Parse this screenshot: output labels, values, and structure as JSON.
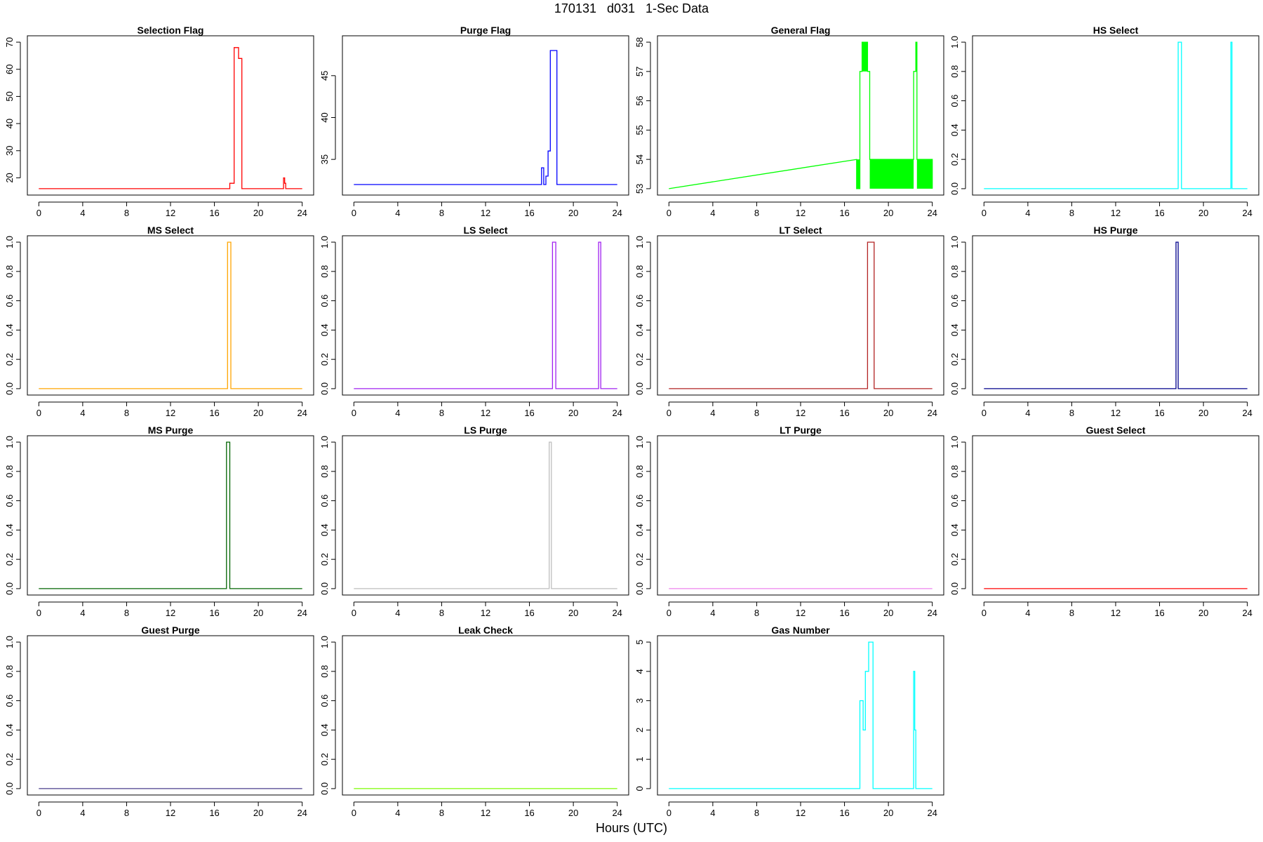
{
  "figure": {
    "title": "170131   d031   1-Sec Data",
    "xlabel": "Hours (UTC)"
  },
  "chart_data": [
    {
      "type": "line",
      "title": "Selection Flag",
      "color": "#ff0000",
      "xlim": [
        0,
        24
      ],
      "ylim": [
        16,
        70
      ],
      "xticks": [
        0,
        4,
        8,
        12,
        16,
        20,
        24
      ],
      "yticks": [
        20,
        30,
        40,
        50,
        60,
        70
      ],
      "x": [
        0,
        17.4,
        17.4,
        17.8,
        17.8,
        18.2,
        18.2,
        18.5,
        18.5,
        22.3,
        22.3,
        22.4,
        22.4,
        22.5,
        22.5,
        24
      ],
      "y": [
        16,
        16,
        18,
        18,
        68,
        68,
        64,
        64,
        16,
        16,
        20,
        20,
        18,
        18,
        16,
        16
      ]
    },
    {
      "type": "line",
      "title": "Purge Flag",
      "color": "#0000ff",
      "xlim": [
        0,
        24
      ],
      "ylim": [
        31.5,
        49
      ],
      "xticks": [
        0,
        4,
        8,
        12,
        16,
        20,
        24
      ],
      "yticks": [
        35,
        40,
        45
      ],
      "x": [
        0,
        17.1,
        17.1,
        17.3,
        17.3,
        17.5,
        17.5,
        17.7,
        17.7,
        17.9,
        17.9,
        18.5,
        18.5,
        24
      ],
      "y": [
        32,
        32,
        34,
        34,
        32,
        32,
        33,
        33,
        36,
        36,
        48,
        48,
        32,
        32
      ]
    },
    {
      "type": "line",
      "title": "General Flag",
      "color": "#00ff00",
      "xlim": [
        0,
        24
      ],
      "ylim": [
        53,
        58
      ],
      "xticks": [
        0,
        4,
        8,
        12,
        16,
        20,
        24
      ],
      "yticks": [
        53,
        54,
        55,
        56,
        57,
        58
      ],
      "x": [
        0,
        17.1,
        17.1,
        17.4,
        17.4,
        17.6,
        17.6,
        18.1,
        18.1,
        18.3,
        18.3,
        22.3,
        22.3,
        22.5,
        22.5,
        22.6,
        22.6,
        24,
        24
      ],
      "y": [
        53,
        54,
        53,
        53,
        57,
        57,
        58,
        58,
        57,
        57,
        54,
        54,
        57,
        57,
        58,
        58,
        54,
        54,
        53
      ],
      "filled_blocks": [
        {
          "x": [
            17.1,
            17.4
          ],
          "y": [
            53,
            54
          ]
        },
        {
          "x": [
            17.6,
            18.1
          ],
          "y": [
            57,
            58
          ]
        },
        {
          "x": [
            18.3,
            22.3
          ],
          "y": [
            53,
            54
          ]
        },
        {
          "x": [
            22.5,
            22.6
          ],
          "y": [
            57,
            58
          ]
        },
        {
          "x": [
            22.6,
            24
          ],
          "y": [
            53,
            54
          ]
        }
      ]
    },
    {
      "type": "line",
      "title": "HS Select",
      "color": "#00ffff",
      "xlim": [
        0,
        24
      ],
      "ylim": [
        0,
        1
      ],
      "xticks": [
        0,
        4,
        8,
        12,
        16,
        20,
        24
      ],
      "yticks": [
        0.0,
        0.2,
        0.4,
        0.6,
        0.8,
        1.0
      ],
      "x": [
        0,
        17.7,
        17.7,
        18.0,
        18.0,
        22.5,
        22.5,
        22.6,
        22.6,
        24
      ],
      "y": [
        0,
        0,
        1,
        1,
        0,
        0,
        1,
        1,
        0,
        0
      ]
    },
    {
      "type": "line",
      "title": "MS Select",
      "color": "#ffa500",
      "xlim": [
        0,
        24
      ],
      "ylim": [
        0,
        1
      ],
      "xticks": [
        0,
        4,
        8,
        12,
        16,
        20,
        24
      ],
      "yticks": [
        0.0,
        0.2,
        0.4,
        0.6,
        0.8,
        1.0
      ],
      "x": [
        0,
        17.2,
        17.2,
        17.5,
        17.5,
        24
      ],
      "y": [
        0,
        0,
        1,
        1,
        0,
        0
      ]
    },
    {
      "type": "line",
      "title": "LS Select",
      "color": "#a020f0",
      "xlim": [
        0,
        24
      ],
      "ylim": [
        0,
        1
      ],
      "xticks": [
        0,
        4,
        8,
        12,
        16,
        20,
        24
      ],
      "yticks": [
        0.0,
        0.2,
        0.4,
        0.6,
        0.8,
        1.0
      ],
      "x": [
        0,
        18.1,
        18.1,
        18.4,
        18.4,
        22.3,
        22.3,
        22.5,
        22.5,
        24
      ],
      "y": [
        0,
        0,
        1,
        1,
        0,
        0,
        1,
        1,
        0,
        0
      ]
    },
    {
      "type": "line",
      "title": "LT Select",
      "color": "#b22222",
      "xlim": [
        0,
        24
      ],
      "ylim": [
        0,
        1
      ],
      "xticks": [
        0,
        4,
        8,
        12,
        16,
        20,
        24
      ],
      "yticks": [
        0.0,
        0.2,
        0.4,
        0.6,
        0.8,
        1.0
      ],
      "x": [
        0,
        18.1,
        18.1,
        18.7,
        18.7,
        24
      ],
      "y": [
        0,
        0,
        1,
        1,
        0,
        0
      ]
    },
    {
      "type": "line",
      "title": "HS Purge",
      "color": "#00008b",
      "xlim": [
        0,
        24
      ],
      "ylim": [
        0,
        1
      ],
      "xticks": [
        0,
        4,
        8,
        12,
        16,
        20,
        24
      ],
      "yticks": [
        0.0,
        0.2,
        0.4,
        0.6,
        0.8,
        1.0
      ],
      "x": [
        0,
        17.5,
        17.5,
        17.7,
        17.7,
        24
      ],
      "y": [
        0,
        0,
        1,
        1,
        0,
        0
      ]
    },
    {
      "type": "line",
      "title": "MS Purge",
      "color": "#006400",
      "xlim": [
        0,
        24
      ],
      "ylim": [
        0,
        1
      ],
      "xticks": [
        0,
        4,
        8,
        12,
        16,
        20,
        24
      ],
      "yticks": [
        0.0,
        0.2,
        0.4,
        0.6,
        0.8,
        1.0
      ],
      "x": [
        0,
        17.1,
        17.1,
        17.4,
        17.4,
        24
      ],
      "y": [
        0,
        0,
        1,
        1,
        0,
        0
      ]
    },
    {
      "type": "line",
      "title": "LS Purge",
      "color": "#bebebe",
      "xlim": [
        0,
        24
      ],
      "ylim": [
        0,
        1
      ],
      "xticks": [
        0,
        4,
        8,
        12,
        16,
        20,
        24
      ],
      "yticks": [
        0.0,
        0.2,
        0.4,
        0.6,
        0.8,
        1.0
      ],
      "x": [
        0,
        17.8,
        17.8,
        18.0,
        18.0,
        24
      ],
      "y": [
        0,
        0,
        1,
        1,
        0,
        0
      ]
    },
    {
      "type": "line",
      "title": "LT Purge",
      "color": "#ee82ee",
      "xlim": [
        0,
        24
      ],
      "ylim": [
        0,
        1
      ],
      "xticks": [
        0,
        4,
        8,
        12,
        16,
        20,
        24
      ],
      "yticks": [
        0.0,
        0.2,
        0.4,
        0.6,
        0.8,
        1.0
      ],
      "x": [
        0,
        24
      ],
      "y": [
        0,
        0
      ]
    },
    {
      "type": "line",
      "title": "Guest Select",
      "color": "#ff0000",
      "xlim": [
        0,
        24
      ],
      "ylim": [
        0,
        1
      ],
      "xticks": [
        0,
        4,
        8,
        12,
        16,
        20,
        24
      ],
      "yticks": [
        0.0,
        0.2,
        0.4,
        0.6,
        0.8,
        1.0
      ],
      "x": [
        0,
        24
      ],
      "y": [
        0,
        0
      ]
    },
    {
      "type": "line",
      "title": "Guest Purge",
      "color": "#483d8b",
      "xlim": [
        0,
        24
      ],
      "ylim": [
        0,
        1
      ],
      "xticks": [
        0,
        4,
        8,
        12,
        16,
        20,
        24
      ],
      "yticks": [
        0.0,
        0.2,
        0.4,
        0.6,
        0.8,
        1.0
      ],
      "x": [
        0,
        24
      ],
      "y": [
        0,
        0
      ]
    },
    {
      "type": "line",
      "title": "Leak Check",
      "color": "#7cfc00",
      "xlim": [
        0,
        24
      ],
      "ylim": [
        0,
        1
      ],
      "xticks": [
        0,
        4,
        8,
        12,
        16,
        20,
        24
      ],
      "yticks": [
        0.0,
        0.2,
        0.4,
        0.6,
        0.8,
        1.0
      ],
      "x": [
        0,
        24
      ],
      "y": [
        0,
        0
      ]
    },
    {
      "type": "line",
      "title": "Gas Number",
      "color": "#00ffff",
      "xlim": [
        0,
        24
      ],
      "ylim": [
        0,
        5
      ],
      "xticks": [
        0,
        4,
        8,
        12,
        16,
        20,
        24
      ],
      "yticks": [
        0,
        1,
        2,
        3,
        4,
        5
      ],
      "x": [
        0,
        17.4,
        17.4,
        17.7,
        17.7,
        17.9,
        17.9,
        18.2,
        18.2,
        18.6,
        18.6,
        22.3,
        22.3,
        22.4,
        22.4,
        22.5,
        22.5,
        24
      ],
      "y": [
        0,
        0,
        3,
        3,
        2,
        2,
        4,
        4,
        5,
        5,
        0,
        0,
        4,
        4,
        2,
        2,
        0,
        0
      ]
    }
  ]
}
